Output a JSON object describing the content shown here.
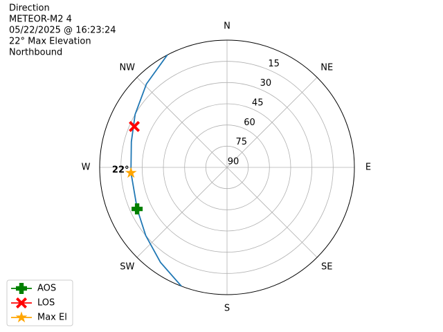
{
  "chart_data": {
    "type": "polar",
    "title_lines": [
      "Direction",
      "METEOR-M2 4",
      "05/22/2025 @ 16:23:24",
      "22° Max Elevation",
      "Northbound"
    ],
    "theta_direction": "clockwise",
    "theta_zero": "N",
    "rlim": [
      90,
      0
    ],
    "rticks": [
      90,
      75,
      60,
      45,
      30,
      15
    ],
    "thetaticks": [
      {
        "value": 0,
        "label": "N"
      },
      {
        "value": 45,
        "label": "NE"
      },
      {
        "value": 90,
        "label": "E"
      },
      {
        "value": 135,
        "label": "SE"
      },
      {
        "value": 180,
        "label": "S"
      },
      {
        "value": 225,
        "label": "SW"
      },
      {
        "value": 270,
        "label": "W"
      },
      {
        "value": 315,
        "label": "NW"
      }
    ],
    "grid": true,
    "legend": "lower left",
    "series": [
      {
        "color": "#1f77b4",
        "marker": "none",
        "x": [
          201,
          215,
          230,
          245,
          267,
          285,
          300,
          316,
          332
        ],
        "values": [
          0,
          8,
          15,
          20,
          22,
          20,
          15,
          8,
          0
        ]
      },
      {
        "name": "AOS",
        "color": "green",
        "marker": "plus",
        "x": [
          245.2
        ],
        "values": [
          20.0
        ]
      },
      {
        "name": "LOS",
        "color": "red",
        "marker": "x",
        "x": [
          293.8
        ],
        "values": [
          18.4
        ]
      },
      {
        "name": "Max El",
        "color": "orange",
        "marker": "star",
        "x": [
          266.7
        ],
        "values": [
          22
        ]
      }
    ],
    "annotations": [
      {
        "text": "22°",
        "x": 266.7,
        "y": 22
      }
    ]
  }
}
